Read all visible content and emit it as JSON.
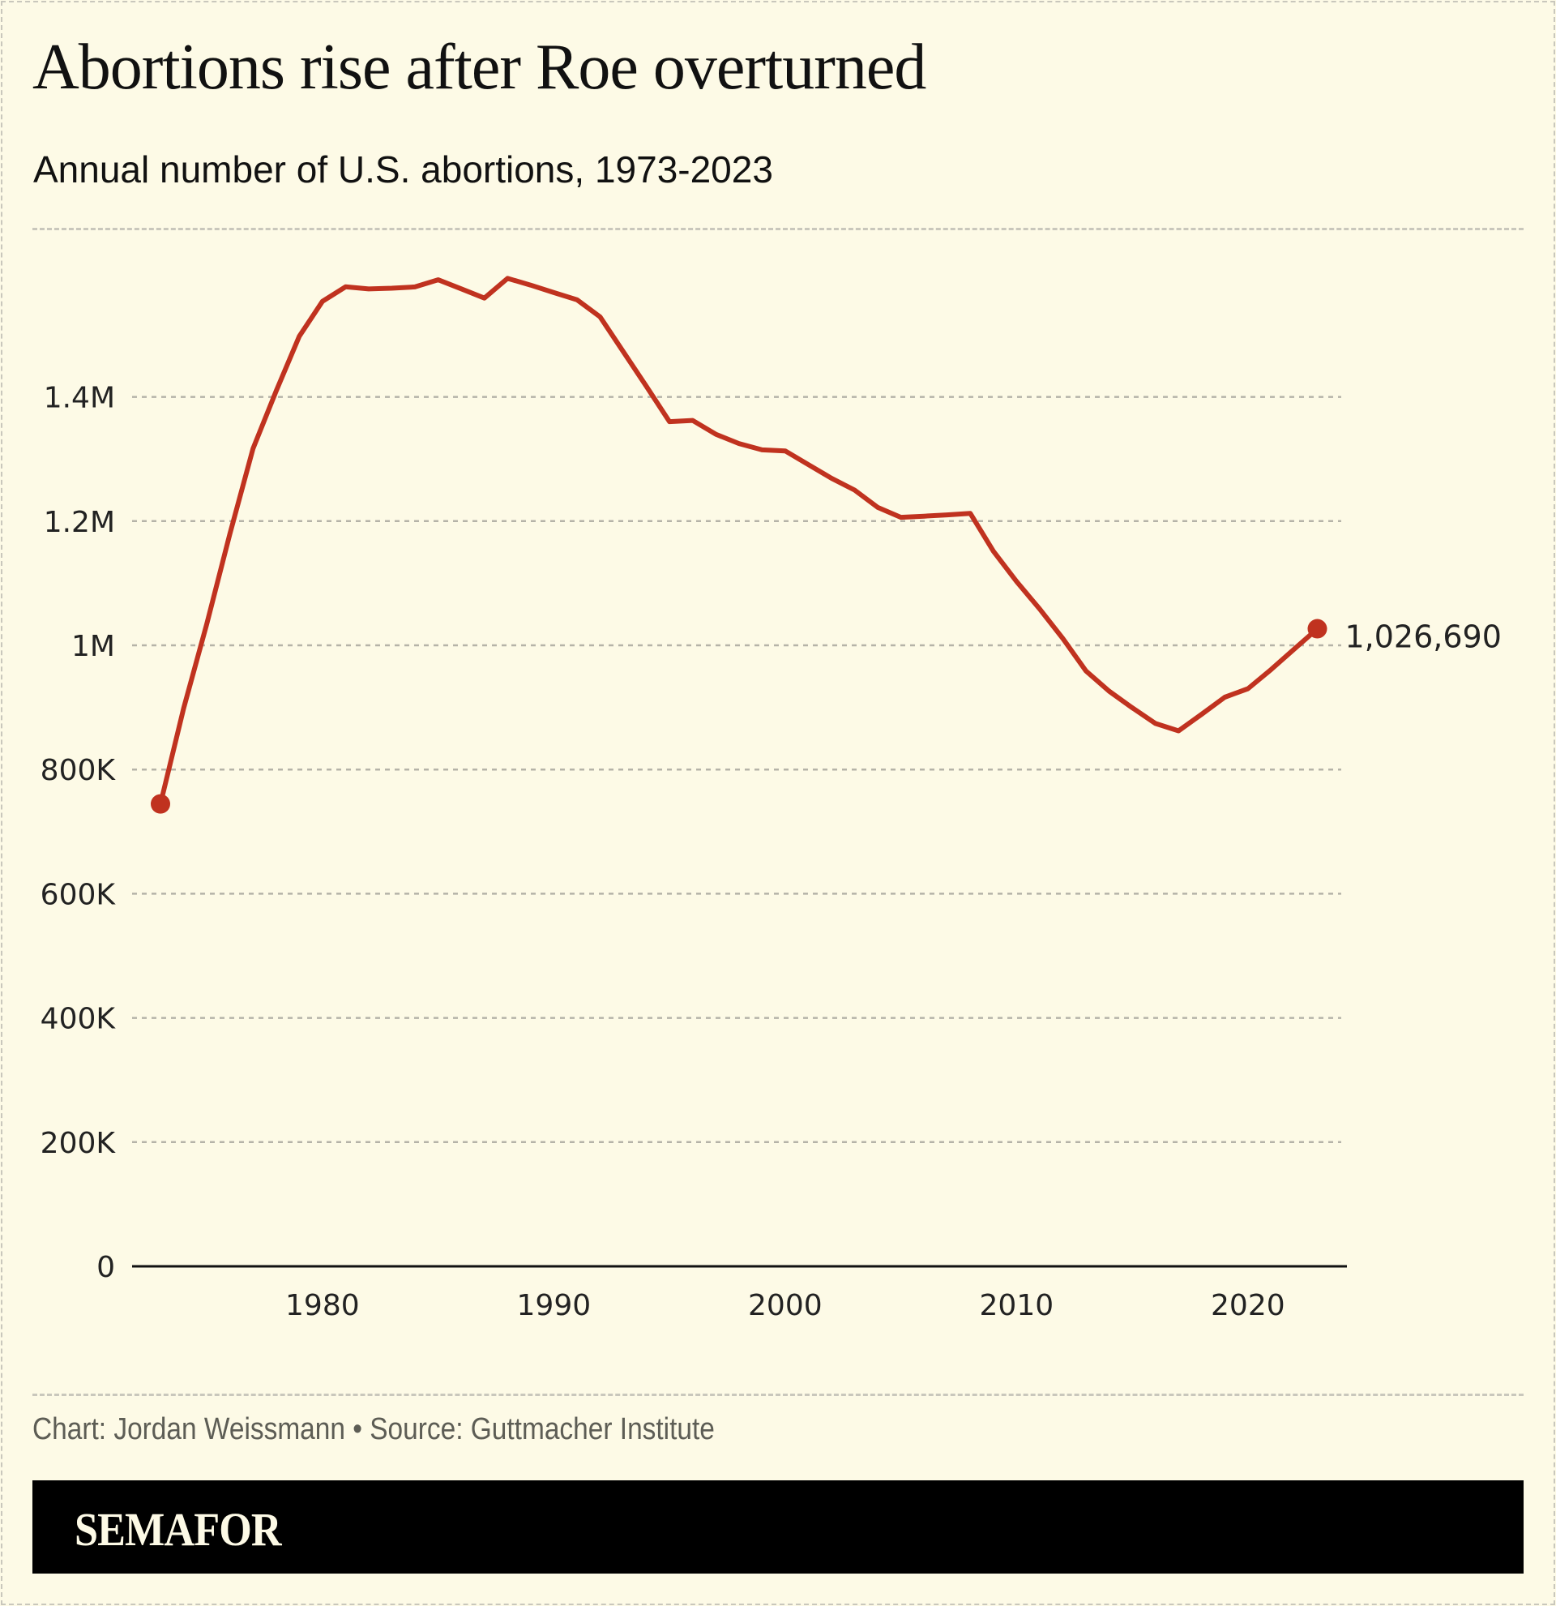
{
  "title": "Abortions rise after Roe overturned",
  "subtitle": "Annual number of U.S. abortions, 1973-2023",
  "credit": "Chart: Jordan Weissmann • Source: Guttmacher Institute",
  "brand": "SEMAFOR",
  "colors": {
    "line": "#c0321f",
    "background": "#fdfae6",
    "grid": "#b5b3a8",
    "brand_bar": "#000000"
  },
  "chart_data": {
    "type": "line",
    "title": "Abortions rise after Roe overturned",
    "subtitle": "Annual number of U.S. abortions, 1973-2023",
    "xlabel": "",
    "ylabel": "",
    "xlim": [
      1973,
      2023
    ],
    "ylim": [
      0,
      1600000
    ],
    "grid": true,
    "x_ticks": [
      1980,
      1990,
      2000,
      2010,
      2020
    ],
    "x_tick_labels": [
      "1980",
      "1990",
      "2000",
      "2010",
      "2020"
    ],
    "y_ticks": [
      0,
      200000,
      400000,
      600000,
      800000,
      1000000,
      1200000,
      1400000
    ],
    "y_tick_labels": [
      "0",
      "200K",
      "400K",
      "600K",
      "800K",
      "1M",
      "1.2M",
      "1.4M"
    ],
    "x": [
      1973,
      1974,
      1975,
      1976,
      1977,
      1978,
      1979,
      1980,
      1981,
      1982,
      1983,
      1984,
      1985,
      1986,
      1987,
      1988,
      1989,
      1990,
      1991,
      1992,
      1993,
      1994,
      1995,
      1996,
      1997,
      1998,
      1999,
      2000,
      2001,
      2002,
      2003,
      2004,
      2005,
      2006,
      2007,
      2008,
      2009,
      2010,
      2011,
      2012,
      2013,
      2014,
      2015,
      2016,
      2017,
      2018,
      2019,
      2020,
      2021,
      2022,
      2023
    ],
    "series": [
      {
        "values": [
          744600,
          898600,
          1034200,
          1179300,
          1316700,
          1409600,
          1497700,
          1553900,
          1577300,
          1573900,
          1575000,
          1577200,
          1588600,
          1574000,
          1559100,
          1590800,
          1580000,
          1568000,
          1556500,
          1528900,
          1473000,
          1417000,
          1360200,
          1362200,
          1340000,
          1325000,
          1314800,
          1312990,
          1291000,
          1269000,
          1250000,
          1222100,
          1206200,
          1208000,
          1210000,
          1212400,
          1151600,
          1102700,
          1058500,
          1011000,
          958700,
          926200,
          899500,
          874100,
          862300,
          889000,
          916500,
          930200,
          961000,
          994000,
          1026690
        ],
        "end_label": "1,026,690"
      }
    ]
  }
}
